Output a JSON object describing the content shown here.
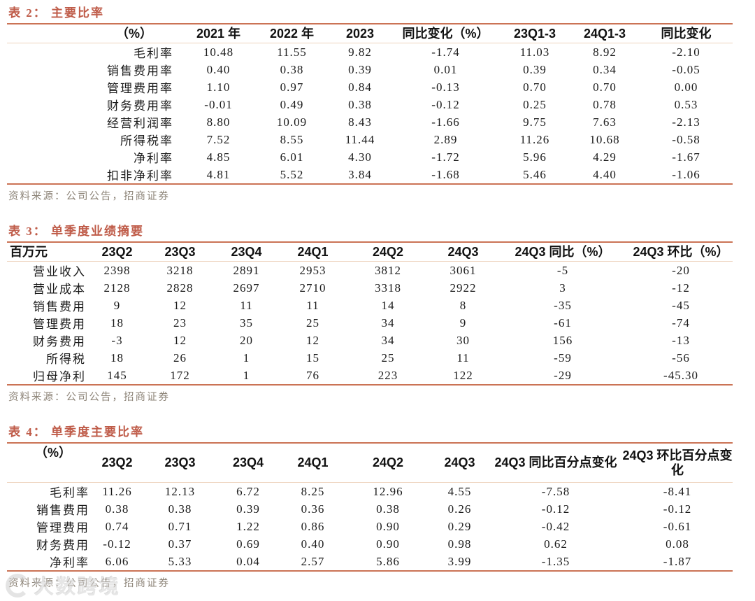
{
  "colors": {
    "title_accent": "#bf5b48",
    "rule_strong": "#cb7355",
    "rule_light": "#eed3bd",
    "source_text": "#8d8478",
    "body_text": "#1b1b1b"
  },
  "tables": [
    {
      "title": "表 2：  主要比率",
      "source": "资料来源：公司公告，招商证券",
      "columns": [
        "（%）",
        "2021 年",
        "2022 年",
        "2023",
        "同比变化（%）",
        "23Q1-3",
        "24Q1-3",
        "同比变化"
      ],
      "rows": [
        [
          "毛利率",
          "10.48",
          "11.55",
          "9.82",
          "-1.74",
          "11.03",
          "8.92",
          "-2.10"
        ],
        [
          "销售费用率",
          "0.40",
          "0.38",
          "0.39",
          "0.01",
          "0.39",
          "0.34",
          "-0.05"
        ],
        [
          "管理费用率",
          "1.10",
          "0.97",
          "0.84",
          "-0.13",
          "0.70",
          "0.70",
          "0.00"
        ],
        [
          "财务费用率",
          "-0.01",
          "0.49",
          "0.38",
          "-0.12",
          "0.25",
          "0.78",
          "0.53"
        ],
        [
          "经营利润率",
          "8.80",
          "10.09",
          "8.43",
          "-1.66",
          "9.75",
          "7.63",
          "-2.13"
        ],
        [
          "所得税率",
          "7.52",
          "8.55",
          "11.44",
          "2.89",
          "11.26",
          "10.68",
          "-0.58"
        ],
        [
          "净利率",
          "4.85",
          "6.01",
          "4.30",
          "-1.72",
          "5.96",
          "4.29",
          "-1.67"
        ],
        [
          "扣非净利率",
          "4.81",
          "5.52",
          "3.84",
          "-1.68",
          "5.46",
          "4.40",
          "-1.06"
        ]
      ]
    },
    {
      "title": "表 3：  单季度业绩摘要",
      "source": "资料来源：公司公告，招商证券",
      "columns": [
        "百万元",
        "23Q2",
        "23Q3",
        "23Q4",
        "24Q1",
        "24Q2",
        "24Q3",
        "24Q3 同比（%）",
        "24Q3 环比（%）"
      ],
      "rows": [
        [
          "营业收入",
          "2398",
          "3218",
          "2891",
          "2953",
          "3812",
          "3061",
          "-5",
          "-20"
        ],
        [
          "营业成本",
          "2128",
          "2828",
          "2697",
          "2710",
          "3318",
          "2922",
          "3",
          "-12"
        ],
        [
          "销售费用",
          "9",
          "12",
          "11",
          "11",
          "14",
          "8",
          "-35",
          "-45"
        ],
        [
          "管理费用",
          "18",
          "23",
          "35",
          "25",
          "34",
          "9",
          "-61",
          "-74"
        ],
        [
          "财务费用",
          "-3",
          "12",
          "20",
          "12",
          "34",
          "30",
          "156",
          "-13"
        ],
        [
          "所得税",
          "18",
          "26",
          "1",
          "15",
          "25",
          "11",
          "-59",
          "-56"
        ],
        [
          "归母净利",
          "145",
          "172",
          "1",
          "76",
          "223",
          "122",
          "-29",
          "-45.30"
        ]
      ]
    },
    {
      "title": "表 4：  单季度主要比率",
      "source": "资料来源：公司公告，招商证券",
      "columns": [
        "（%）",
        "23Q2",
        "23Q3",
        "23Q4",
        "24Q1",
        "24Q2",
        "24Q3",
        "24Q3 同比百分点变化",
        "24Q3 环比百分点变化"
      ],
      "rows": [
        [
          "毛利率",
          "11.26",
          "12.13",
          "6.72",
          "8.25",
          "12.96",
          "4.55",
          "-7.58",
          "-8.41"
        ],
        [
          "销售费用",
          "0.38",
          "0.38",
          "0.39",
          "0.36",
          "0.38",
          "0.26",
          "-0.12",
          "-0.12"
        ],
        [
          "管理费用",
          "0.74",
          "0.71",
          "1.22",
          "0.86",
          "0.90",
          "0.29",
          "-0.42",
          "-0.61"
        ],
        [
          "财务费用",
          "-0.12",
          "0.37",
          "0.69",
          "0.40",
          "0.90",
          "0.98",
          "0.62",
          "0.08"
        ],
        [
          "净利率",
          "6.06",
          "5.33",
          "0.04",
          "2.57",
          "5.86",
          "3.99",
          "-1.35",
          "-1.87"
        ]
      ]
    }
  ],
  "watermark": {
    "text": "大数跨境"
  }
}
